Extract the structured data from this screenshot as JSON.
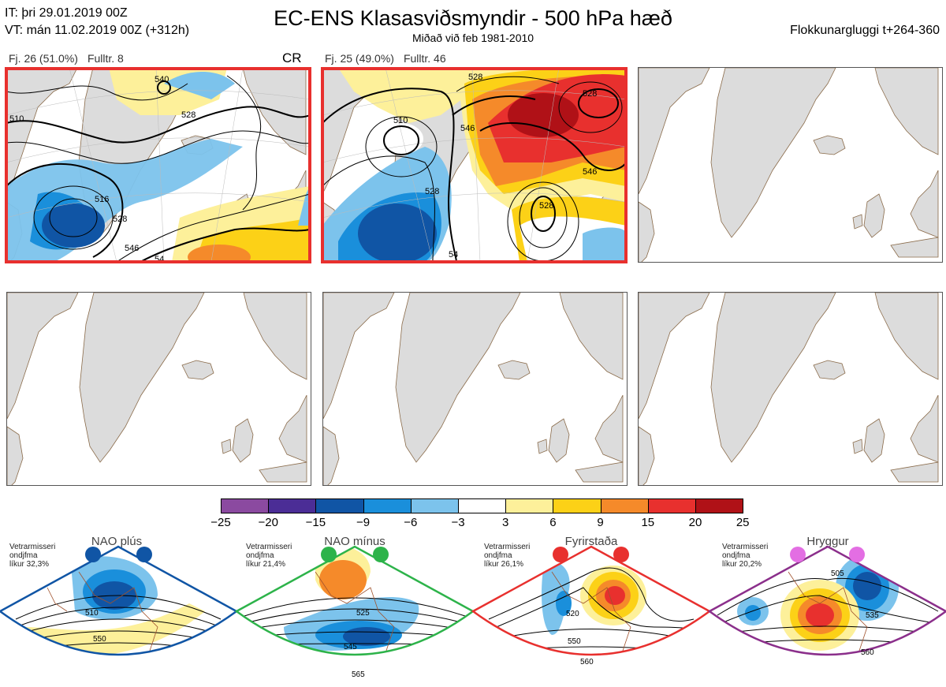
{
  "header": {
    "it_line": "IT: þri 29.01.2019 00Z",
    "vt_line": "VT: mán 11.02.2019 00Z  (+312h)",
    "title": "EC-ENS Klasasviðsmyndir - 500 hPa hæð",
    "subtitle": "Miðað við feb 1981-2010",
    "right": "Flokkunargluggi t+264-360"
  },
  "panels": [
    {
      "fj": "Fj. 26 (51.0%)",
      "fulltr": "Fulltr. 8",
      "tag": "CR",
      "selected": true,
      "contour_labels": [
        "540",
        "528",
        "510",
        "516",
        "528",
        "546",
        "54"
      ]
    },
    {
      "fj": "Fj. 25 (49.0%)",
      "fulltr": "Fulltr. 46",
      "tag": "",
      "selected": true,
      "contour_labels": [
        "528",
        "510",
        "528",
        "546",
        "528",
        "546",
        "528",
        "54"
      ]
    }
  ],
  "colorbar": {
    "ticks": [
      "−25",
      "−20",
      "−15",
      "−9",
      "−6",
      "−3",
      "3",
      "6",
      "9",
      "15",
      "20",
      "25"
    ],
    "colors": [
      "#8b4aa0",
      "#4b2d96",
      "#1055a5",
      "#1a8fdb",
      "#7cc3ec",
      "#ffffff",
      "#fdf09a",
      "#fcd117",
      "#f58a2a",
      "#e8302e",
      "#b01117"
    ]
  },
  "regimes": [
    {
      "name": "NAO plús",
      "note": [
        "Vetrarmisseri",
        "ondjfma",
        "líkur 32,3%"
      ],
      "color": "#1055a5",
      "labels": [
        "510",
        "550"
      ]
    },
    {
      "name": "NAO mínus",
      "note": [
        "Vetrarmisseri",
        "ondjfma",
        "líkur 21,4%"
      ],
      "color": "#2db34a",
      "labels": [
        "525",
        "545",
        "565"
      ]
    },
    {
      "name": "Fyrirstaða",
      "note": [
        "Vetrarmisseri",
        "ondjfma",
        "líkur 26,1%"
      ],
      "color": "#e8302e",
      "labels": [
        "520",
        "550",
        "560"
      ]
    },
    {
      "name": "Hryggur",
      "note": [
        "Vetrarmisseri",
        "ondjfma",
        "líkur 20,2%"
      ],
      "color": "#e36ee3",
      "labels": [
        "505",
        "535",
        "560"
      ]
    }
  ]
}
